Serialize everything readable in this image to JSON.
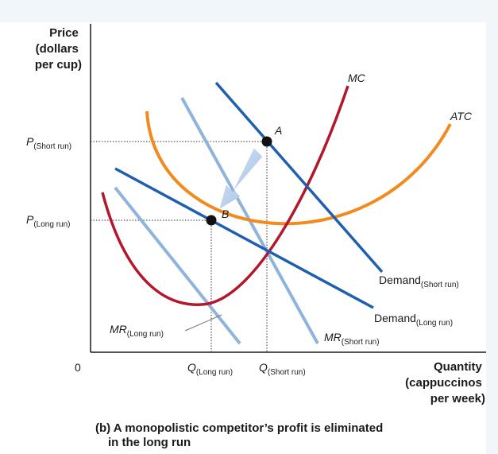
{
  "chart_data": {
    "type": "line",
    "title": "",
    "ylabel": [
      "Price",
      "(dollars",
      "per cup)"
    ],
    "xlabel": [
      "Quantity",
      "(cappuccinos",
      "per week)"
    ],
    "origin_label": "0",
    "price_ticks": [
      {
        "main": "P",
        "sub": "(Short run)"
      },
      {
        "main": "P",
        "sub": "(Long run)"
      }
    ],
    "quantity_ticks": [
      {
        "main": "Q",
        "sub": "(Long run)"
      },
      {
        "main": "Q",
        "sub": "(Short run)"
      }
    ],
    "series": [
      {
        "name": "MC",
        "label": "MC",
        "color": "#b3172c"
      },
      {
        "name": "ATC",
        "label": "ATC",
        "color": "#f28a1e"
      },
      {
        "name": "Demand (Short run)",
        "label": "Demand",
        "sub": "(Short run)",
        "color": "#1f5fae"
      },
      {
        "name": "Demand (Long run)",
        "label": "Demand",
        "sub": "(Long run)",
        "color": "#1f5fae"
      },
      {
        "name": "MR (Short run)",
        "label": "MR",
        "sub": "(Short run)",
        "color": "#8fb4dc"
      },
      {
        "name": "MR (Long run)",
        "label": "MR",
        "sub": "(Long run)",
        "color": "#8fb4dc"
      }
    ],
    "points": [
      {
        "label": "A",
        "at": [
          "Q (Short run)",
          "P (Short run)"
        ]
      },
      {
        "label": "B",
        "at": [
          "Q (Long run)",
          "P (Long run)"
        ]
      }
    ]
  },
  "caption": {
    "line1": "(b) A monopolistic competitor’s profit is eliminated",
    "line2": "in the long run"
  }
}
